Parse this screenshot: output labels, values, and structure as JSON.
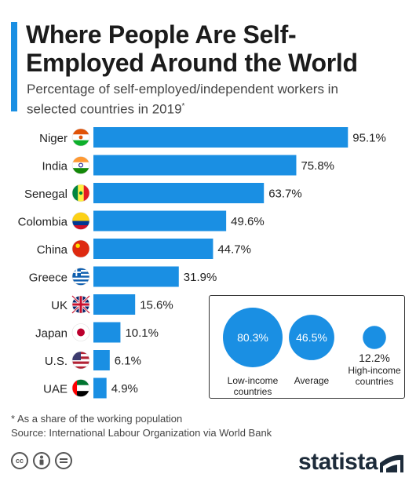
{
  "header": {
    "title": "Where People Are Self-Employed Around the World",
    "subtitle": "Percentage of self-employed/independent workers in selected countries in 2019",
    "subtitle_mark": "*"
  },
  "chart_data": {
    "type": "bar",
    "orientation": "horizontal",
    "categories": [
      "Niger",
      "India",
      "Senegal",
      "Colombia",
      "China",
      "Greece",
      "UK",
      "Japan",
      "U.S.",
      "UAE"
    ],
    "values": [
      95.1,
      75.8,
      63.7,
      49.6,
      44.7,
      31.9,
      15.6,
      10.1,
      6.1,
      4.9
    ],
    "value_labels": [
      "95.1%",
      "75.8%",
      "63.7%",
      "49.6%",
      "44.7%",
      "31.9%",
      "15.6%",
      "10.1%",
      "6.1%",
      "4.9%"
    ],
    "unit": "%",
    "xlim": [
      0,
      100
    ],
    "bar_color": "#1a8fe3",
    "grid": false,
    "income_groups": [
      {
        "label_lines": [
          "Low-income",
          "countries"
        ],
        "value": 80.3,
        "value_label": "80.3%"
      },
      {
        "label_lines": [
          "Average"
        ],
        "value": 46.5,
        "value_label": "46.5%"
      },
      {
        "label_lines": [
          "High-income",
          "countries"
        ],
        "value": 12.2,
        "value_label": "12.2%"
      }
    ]
  },
  "flags": {
    "Niger": "niger-flag-icon",
    "India": "india-flag-icon",
    "Senegal": "senegal-flag-icon",
    "Colombia": "colombia-flag-icon",
    "China": "china-flag-icon",
    "Greece": "greece-flag-icon",
    "UK": "uk-flag-icon",
    "Japan": "japan-flag-icon",
    "U.S.": "us-flag-icon",
    "UAE": "uae-flag-icon"
  },
  "footer": {
    "footnote": "* As a share of the working population",
    "source": "Source: International Labour Organization via World Bank",
    "brand": "statista",
    "license_icons": [
      "cc-icon",
      "by-icon",
      "nd-icon"
    ]
  },
  "colors": {
    "accent": "#1a8fe3",
    "text": "#222222"
  }
}
